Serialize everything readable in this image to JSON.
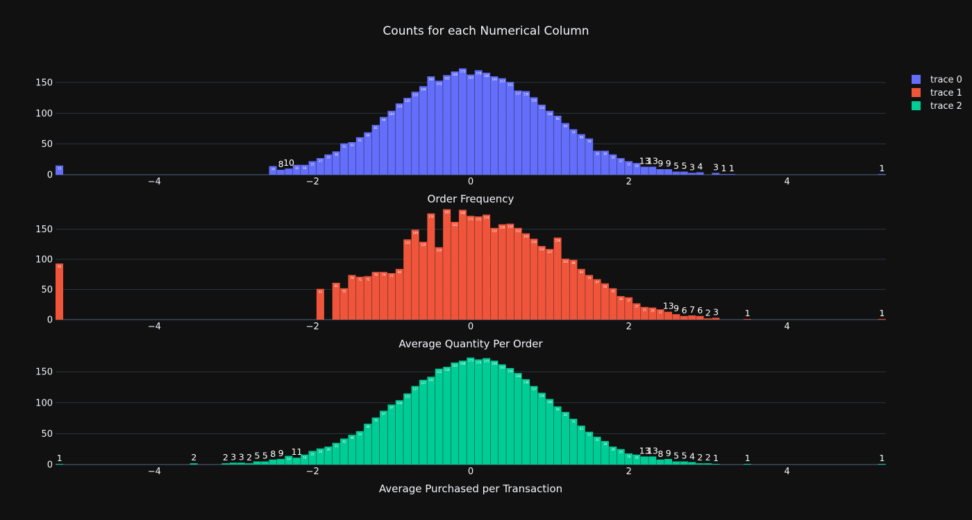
{
  "title": "Counts for each Numerical Column",
  "legend": [
    {
      "name": "trace 0",
      "color": "#636efa"
    },
    {
      "name": "trace 1",
      "color": "#ef553b"
    },
    {
      "name": "trace 2",
      "color": "#00cc96"
    }
  ],
  "chart_data": [
    {
      "type": "bar",
      "xlabel": "Order Frequency",
      "xlim": [
        -5.25,
        5.25
      ],
      "ylim": [
        0,
        185
      ],
      "xticks": [
        -4,
        -2,
        0,
        2,
        4
      ],
      "xtick_labels": [
        "−4",
        "−2",
        "0",
        "2",
        "4"
      ],
      "yticks": [
        0,
        50,
        100,
        150
      ],
      "bin_width": 0.1,
      "color": "#636efa",
      "x": [
        -5.2,
        -2.5,
        -2.4,
        -2.3,
        -2.2,
        -2.1,
        -2.0,
        -1.9,
        -1.8,
        -1.7,
        -1.6,
        -1.5,
        -1.4,
        -1.3,
        -1.2,
        -1.1,
        -1.0,
        -0.9,
        -0.8,
        -0.7,
        -0.6,
        -0.5,
        -0.4,
        -0.3,
        -0.2,
        -0.1,
        0.0,
        0.1,
        0.2,
        0.3,
        0.4,
        0.5,
        0.6,
        0.7,
        0.8,
        0.9,
        1.0,
        1.1,
        1.2,
        1.3,
        1.4,
        1.5,
        1.6,
        1.7,
        1.8,
        1.9,
        2.0,
        2.1,
        2.2,
        2.3,
        2.4,
        2.5,
        2.6,
        2.7,
        2.8,
        2.9,
        3.1,
        3.2,
        3.3,
        5.2
      ],
      "y": [
        15,
        14,
        8,
        10,
        16,
        16,
        22,
        27,
        33,
        38,
        51,
        53,
        61,
        69,
        81,
        94,
        104,
        116,
        125,
        135,
        144,
        160,
        153,
        162,
        168,
        173,
        163,
        170,
        166,
        160,
        157,
        151,
        137,
        136,
        126,
        114,
        104,
        96,
        84,
        74,
        66,
        59,
        39,
        39,
        33,
        27,
        22,
        19,
        13,
        13,
        9,
        9,
        5,
        5,
        3,
        4,
        3,
        1,
        1,
        1
      ]
    },
    {
      "type": "bar",
      "xlabel": "Average Quantity Per Order",
      "xlim": [
        -5.25,
        5.25
      ],
      "ylim": [
        0,
        185
      ],
      "xticks": [
        -4,
        -2,
        0,
        2,
        4
      ],
      "xtick_labels": [
        "−4",
        "−2",
        "0",
        "2",
        "4"
      ],
      "yticks": [
        0,
        50,
        100,
        150
      ],
      "bin_width": 0.1,
      "color": "#ef553b",
      "x": [
        -5.2,
        -1.9,
        -1.7,
        -1.6,
        -1.5,
        -1.4,
        -1.3,
        -1.2,
        -1.1,
        -1.0,
        -0.9,
        -0.8,
        -0.7,
        -0.6,
        -0.5,
        -0.4,
        -0.3,
        -0.2,
        -0.1,
        0.0,
        0.1,
        0.2,
        0.3,
        0.4,
        0.5,
        0.6,
        0.7,
        0.8,
        0.9,
        1.0,
        1.1,
        1.2,
        1.3,
        1.4,
        1.5,
        1.6,
        1.7,
        1.8,
        1.9,
        2.0,
        2.1,
        2.2,
        2.3,
        2.4,
        2.5,
        2.6,
        2.7,
        2.8,
        2.9,
        3.0,
        3.1,
        3.5,
        5.2
      ],
      "y": [
        93,
        51,
        61,
        52,
        74,
        71,
        72,
        79,
        79,
        77,
        84,
        133,
        149,
        129,
        176,
        120,
        183,
        162,
        182,
        172,
        171,
        174,
        152,
        158,
        159,
        152,
        143,
        134,
        122,
        117,
        136,
        101,
        99,
        84,
        74,
        67,
        60,
        52,
        39,
        37,
        27,
        21,
        20,
        17,
        13,
        9,
        6,
        7,
        6,
        2,
        3,
        1,
        1
      ]
    },
    {
      "type": "bar",
      "xlabel": "Average Purchased per Transaction",
      "xlim": [
        -5.25,
        5.25
      ],
      "ylim": [
        0,
        185
      ],
      "xticks": [
        -4,
        -2,
        0,
        2,
        4
      ],
      "xtick_labels": [
        "−4",
        "−2",
        "0",
        "2",
        "4"
      ],
      "yticks": [
        0,
        50,
        100,
        150
      ],
      "bin_width": 0.1,
      "color": "#00cc96",
      "x": [
        -5.2,
        -3.5,
        -3.1,
        -3.0,
        -2.9,
        -2.8,
        -2.7,
        -2.6,
        -2.5,
        -2.4,
        -2.3,
        -2.2,
        -2.1,
        -2.0,
        -1.9,
        -1.8,
        -1.7,
        -1.6,
        -1.5,
        -1.4,
        -1.3,
        -1.2,
        -1.1,
        -1.0,
        -0.9,
        -0.8,
        -0.7,
        -0.6,
        -0.5,
        -0.4,
        -0.3,
        -0.2,
        -0.1,
        0.0,
        0.1,
        0.2,
        0.3,
        0.4,
        0.5,
        0.6,
        0.7,
        0.8,
        0.9,
        1.0,
        1.1,
        1.2,
        1.3,
        1.4,
        1.5,
        1.6,
        1.7,
        1.8,
        1.9,
        2.0,
        2.1,
        2.2,
        2.3,
        2.4,
        2.5,
        2.6,
        2.7,
        2.8,
        2.9,
        3.0,
        3.1,
        3.5,
        5.2
      ],
      "y": [
        1,
        2,
        2,
        3,
        3,
        2,
        5,
        5,
        8,
        9,
        14,
        11,
        16,
        22,
        26,
        29,
        35,
        42,
        48,
        54,
        66,
        76,
        87,
        97,
        104,
        115,
        127,
        137,
        142,
        155,
        158,
        165,
        168,
        173,
        170,
        172,
        168,
        162,
        156,
        148,
        138,
        127,
        116,
        106,
        94,
        85,
        74,
        63,
        53,
        45,
        38,
        29,
        25,
        18,
        16,
        13,
        13,
        8,
        9,
        5,
        5,
        4,
        2,
        2,
        1,
        1,
        1
      ]
    }
  ]
}
